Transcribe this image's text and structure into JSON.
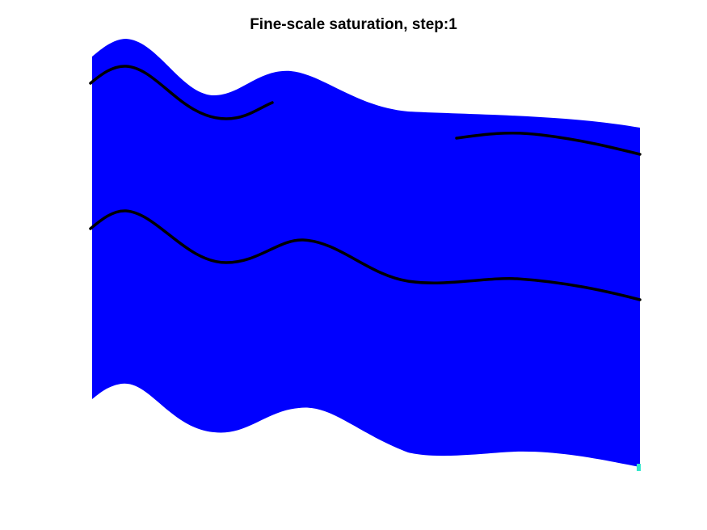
{
  "title": "Fine-scale saturation, step:1",
  "colors": {
    "background": "#ffffff",
    "saturation_fill": "#0000ff",
    "corner_cell": "#33e6cc",
    "well_line": "#000000"
  }
}
